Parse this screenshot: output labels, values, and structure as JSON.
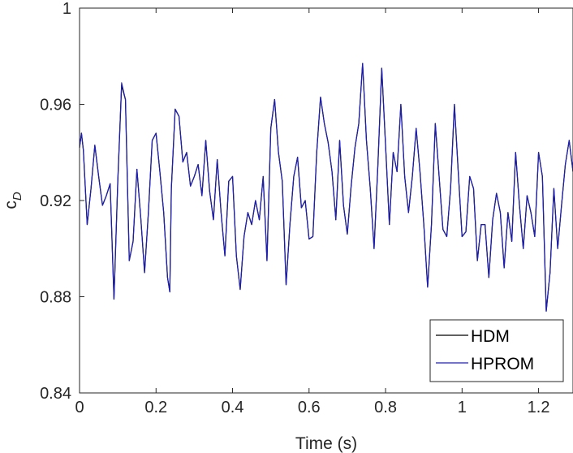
{
  "chart_data": {
    "type": "line",
    "xlabel": "Time (s)",
    "ylabel_main": "c",
    "ylabel_sub": "D",
    "xlim": [
      0,
      1.29
    ],
    "ylim": [
      0.84,
      1.0
    ],
    "xticks": [
      0,
      0.2,
      0.4,
      0.6,
      0.8,
      1,
      1.2
    ],
    "xtick_labels": [
      "0",
      "0.2",
      "0.4",
      "0.6",
      "0.8",
      "1",
      "1.2"
    ],
    "yticks": [
      0.84,
      0.88,
      0.92,
      0.96,
      1.0
    ],
    "ytick_labels": [
      "0.84",
      "0.88",
      "0.92",
      "0.96",
      "1"
    ],
    "grid": false,
    "legend_position": "bottom-right",
    "series": [
      {
        "name": "HDM",
        "color": "#000000",
        "x": [
          0,
          0.005,
          0.01,
          0.02,
          0.03,
          0.04,
          0.05,
          0.06,
          0.07,
          0.08,
          0.09,
          0.1,
          0.11,
          0.12,
          0.13,
          0.14,
          0.15,
          0.16,
          0.17,
          0.18,
          0.19,
          0.2,
          0.21,
          0.22,
          0.23,
          0.236,
          0.24,
          0.25,
          0.26,
          0.27,
          0.28,
          0.29,
          0.3,
          0.31,
          0.32,
          0.33,
          0.34,
          0.35,
          0.36,
          0.37,
          0.38,
          0.39,
          0.4,
          0.41,
          0.42,
          0.43,
          0.44,
          0.45,
          0.46,
          0.47,
          0.48,
          0.49,
          0.5,
          0.51,
          0.52,
          0.53,
          0.54,
          0.55,
          0.56,
          0.57,
          0.58,
          0.59,
          0.6,
          0.61,
          0.62,
          0.63,
          0.64,
          0.65,
          0.66,
          0.67,
          0.68,
          0.69,
          0.7,
          0.71,
          0.72,
          0.73,
          0.74,
          0.75,
          0.76,
          0.77,
          0.78,
          0.79,
          0.8,
          0.81,
          0.82,
          0.83,
          0.84,
          0.85,
          0.86,
          0.87,
          0.88,
          0.89,
          0.9,
          0.91,
          0.92,
          0.93,
          0.94,
          0.95,
          0.96,
          0.97,
          0.98,
          0.99,
          1.0,
          1.01,
          1.02,
          1.03,
          1.04,
          1.05,
          1.06,
          1.07,
          1.08,
          1.09,
          1.1,
          1.11,
          1.12,
          1.13,
          1.14,
          1.15,
          1.16,
          1.17,
          1.18,
          1.19,
          1.2,
          1.21,
          1.22,
          1.23,
          1.24,
          1.25,
          1.26,
          1.27,
          1.28,
          1.29
        ],
        "y": [
          0.942,
          0.948,
          0.941,
          0.91,
          0.925,
          0.943,
          0.93,
          0.918,
          0.922,
          0.927,
          0.879,
          0.928,
          0.968,
          0.962,
          0.895,
          0.903,
          0.933,
          0.913,
          0.89,
          0.915,
          0.945,
          0.948,
          0.932,
          0.915,
          0.888,
          0.882,
          0.925,
          0.958,
          0.955,
          0.936,
          0.94,
          0.926,
          0.93,
          0.935,
          0.922,
          0.945,
          0.924,
          0.912,
          0.937,
          0.915,
          0.897,
          0.928,
          0.93,
          0.897,
          0.883,
          0.905,
          0.915,
          0.91,
          0.92,
          0.912,
          0.93,
          0.895,
          0.95,
          0.962,
          0.94,
          0.928,
          0.885,
          0.91,
          0.93,
          0.938,
          0.917,
          0.92,
          0.904,
          0.905,
          0.94,
          0.963,
          0.952,
          0.944,
          0.932,
          0.912,
          0.945,
          0.918,
          0.906,
          0.926,
          0.942,
          0.952,
          0.977,
          0.945,
          0.925,
          0.9,
          0.935,
          0.975,
          0.943,
          0.91,
          0.94,
          0.932,
          0.96,
          0.93,
          0.915,
          0.93,
          0.95,
          0.932,
          0.91,
          0.884,
          0.91,
          0.952,
          0.93,
          0.908,
          0.905,
          0.925,
          0.96,
          0.932,
          0.905,
          0.907,
          0.93,
          0.925,
          0.895,
          0.91,
          0.91,
          0.888,
          0.912,
          0.923,
          0.915,
          0.892,
          0.915,
          0.903,
          0.94,
          0.918,
          0.9,
          0.922,
          0.915,
          0.905,
          0.94,
          0.93,
          0.874,
          0.89,
          0.925,
          0.9,
          0.918,
          0.935,
          0.945,
          0.932
        ]
      },
      {
        "name": "HPROM",
        "color": "#1f1fbf",
        "x": [
          0,
          0.005,
          0.01,
          0.02,
          0.03,
          0.04,
          0.05,
          0.06,
          0.07,
          0.08,
          0.09,
          0.1,
          0.11,
          0.12,
          0.13,
          0.14,
          0.15,
          0.16,
          0.17,
          0.18,
          0.19,
          0.2,
          0.21,
          0.22,
          0.23,
          0.236,
          0.24,
          0.25,
          0.26,
          0.27,
          0.28,
          0.29,
          0.3,
          0.31,
          0.32,
          0.33,
          0.34,
          0.35,
          0.36,
          0.37,
          0.38,
          0.39,
          0.4,
          0.41,
          0.42,
          0.43,
          0.44,
          0.45,
          0.46,
          0.47,
          0.48,
          0.49,
          0.5,
          0.51,
          0.52,
          0.53,
          0.54,
          0.55,
          0.56,
          0.57,
          0.58,
          0.59,
          0.6,
          0.61,
          0.62,
          0.63,
          0.64,
          0.65,
          0.66,
          0.67,
          0.68,
          0.69,
          0.7,
          0.71,
          0.72,
          0.73,
          0.74,
          0.75,
          0.76,
          0.77,
          0.78,
          0.79,
          0.8,
          0.81,
          0.82,
          0.83,
          0.84,
          0.85,
          0.86,
          0.87,
          0.88,
          0.89,
          0.9,
          0.91,
          0.92,
          0.93,
          0.94,
          0.95,
          0.96,
          0.97,
          0.98,
          0.99,
          1.0,
          1.01,
          1.02,
          1.03,
          1.04,
          1.05,
          1.06,
          1.07,
          1.08,
          1.09,
          1.1,
          1.11,
          1.12,
          1.13,
          1.14,
          1.15,
          1.16,
          1.17,
          1.18,
          1.19,
          1.2,
          1.21,
          1.22,
          1.23,
          1.24,
          1.25,
          1.26,
          1.27,
          1.28,
          1.29
        ],
        "y": [
          0.942,
          0.948,
          0.941,
          0.91,
          0.925,
          0.943,
          0.93,
          0.918,
          0.922,
          0.927,
          0.879,
          0.928,
          0.969,
          0.962,
          0.895,
          0.903,
          0.933,
          0.913,
          0.89,
          0.915,
          0.945,
          0.948,
          0.932,
          0.915,
          0.888,
          0.882,
          0.925,
          0.958,
          0.955,
          0.936,
          0.94,
          0.926,
          0.93,
          0.935,
          0.922,
          0.945,
          0.924,
          0.912,
          0.937,
          0.915,
          0.897,
          0.928,
          0.93,
          0.897,
          0.883,
          0.905,
          0.915,
          0.91,
          0.92,
          0.912,
          0.93,
          0.895,
          0.95,
          0.962,
          0.94,
          0.928,
          0.885,
          0.91,
          0.93,
          0.938,
          0.917,
          0.92,
          0.904,
          0.905,
          0.94,
          0.963,
          0.952,
          0.944,
          0.932,
          0.912,
          0.945,
          0.918,
          0.906,
          0.926,
          0.942,
          0.952,
          0.977,
          0.945,
          0.925,
          0.9,
          0.935,
          0.975,
          0.943,
          0.91,
          0.94,
          0.932,
          0.96,
          0.93,
          0.915,
          0.93,
          0.95,
          0.932,
          0.91,
          0.884,
          0.91,
          0.952,
          0.93,
          0.908,
          0.905,
          0.925,
          0.96,
          0.932,
          0.905,
          0.907,
          0.93,
          0.925,
          0.895,
          0.91,
          0.91,
          0.888,
          0.912,
          0.923,
          0.915,
          0.892,
          0.915,
          0.903,
          0.94,
          0.918,
          0.9,
          0.922,
          0.915,
          0.905,
          0.94,
          0.93,
          0.874,
          0.89,
          0.925,
          0.9,
          0.918,
          0.935,
          0.945,
          0.932
        ]
      }
    ]
  }
}
